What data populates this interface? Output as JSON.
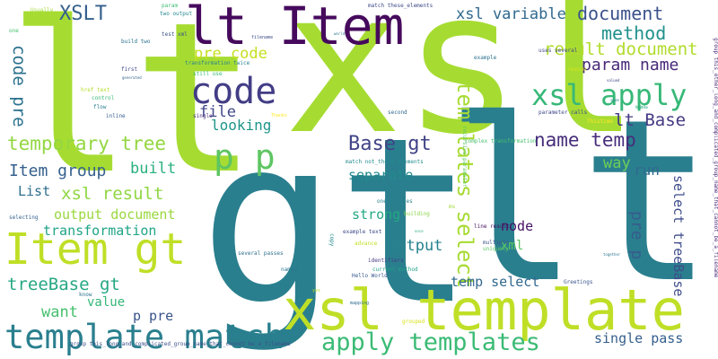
{
  "words": [
    {
      "text": "lt",
      "color": "#a6dc32"
    },
    {
      "text": "xsl",
      "color": "#a6dc32"
    },
    {
      "text": "gt",
      "color": "#2a7f8e"
    },
    {
      "text": "lt",
      "color": "#2a7f8e"
    },
    {
      "text": "lt Item",
      "color": "#460a5d"
    },
    {
      "text": "code",
      "color": "#423d85"
    },
    {
      "text": "Item gt",
      "color": "#bfdf27"
    },
    {
      "text": "xsl template",
      "color": "#bfdf27"
    },
    {
      "text": "template match",
      "color": "#2a7f8e"
    },
    {
      "text": "xsl apply",
      "color": "#37b878"
    },
    {
      "text": "p p",
      "color": "#5ec562"
    },
    {
      "text": "apply templates",
      "color": "#3bbb75"
    },
    {
      "text": "XSLT",
      "color": "#35608d"
    },
    {
      "text": "xsl variable",
      "color": "#30698e"
    },
    {
      "text": "document",
      "color": "#3b528b"
    },
    {
      "text": "method",
      "color": "#21918c"
    },
    {
      "text": "result document",
      "color": "#b1dc2b"
    },
    {
      "text": "param name",
      "color": "#482878"
    },
    {
      "text": "pre code",
      "color": "#c7e020"
    },
    {
      "text": "code pre",
      "color": "#2c728e"
    },
    {
      "text": "file",
      "color": "#3f4788"
    },
    {
      "text": "looking",
      "color": "#1f968b"
    },
    {
      "text": "temporary tree",
      "color": "#93d741"
    },
    {
      "text": "Base gt",
      "color": "#414487"
    },
    {
      "text": "name temp",
      "color": "#472d7b"
    },
    {
      "text": "lt Base",
      "color": "#443983"
    },
    {
      "text": "templates select",
      "color": "#a8db34"
    },
    {
      "text": "Item group",
      "color": "#35608d"
    },
    {
      "text": "built",
      "color": "#2ab07f"
    },
    {
      "text": "xsl result",
      "color": "#90d743"
    },
    {
      "text": "separate",
      "color": "#238a8d"
    },
    {
      "text": "way",
      "color": "#6ece58"
    },
    {
      "text": "run",
      "color": "#306a8e"
    },
    {
      "text": "List",
      "color": "#2e6f8e"
    },
    {
      "text": "output document",
      "color": "#99d83d"
    },
    {
      "text": "strong",
      "color": "#23a983"
    },
    {
      "text": "node",
      "color": "#471164"
    },
    {
      "text": "xml",
      "color": "#58c765"
    },
    {
      "text": "pre p",
      "color": "#365c8d"
    },
    {
      "text": "select treeBase",
      "color": "#3e4c8a"
    },
    {
      "text": "transformation",
      "color": "#20a486"
    },
    {
      "text": "output",
      "color": "#26828e"
    },
    {
      "text": "treeBase gt",
      "color": "#26a784"
    },
    {
      "text": "want",
      "color": "#46c06f"
    },
    {
      "text": "value",
      "color": "#34b679"
    },
    {
      "text": "p pre",
      "color": "#3a548c"
    },
    {
      "text": "temp select",
      "color": "#31688e"
    },
    {
      "text": "single pass",
      "color": "#355f8d"
    },
    {
      "text": "Usually",
      "color": "#a0da39"
    },
    {
      "text": "param",
      "color": "#3dbc74"
    },
    {
      "text": "two output",
      "color": "#238a8d"
    },
    {
      "text": "match these_elements",
      "color": "#3e4989"
    },
    {
      "text": "one",
      "color": "#46c06f"
    },
    {
      "text": "build two",
      "color": "#2c728e"
    },
    {
      "text": "test xml",
      "color": "#3b528b"
    },
    {
      "text": "first",
      "color": "#3e4989"
    },
    {
      "text": "generated",
      "color": "#33638d"
    },
    {
      "text": "href text",
      "color": "#b5de2b"
    },
    {
      "text": "control",
      "color": "#3aba76"
    },
    {
      "text": "flow",
      "color": "#277f8e"
    },
    {
      "text": "inline",
      "color": "#355f8d"
    },
    {
      "text": "still use",
      "color": "#3aba76"
    },
    {
      "text": "transformation twice",
      "color": "#26828e"
    },
    {
      "text": "single",
      "color": "#472c7a"
    },
    {
      "text": "filename",
      "color": "#3d4d8a"
    },
    {
      "text": "Thanks",
      "color": "#fde725"
    },
    {
      "text": "second",
      "color": "#31688e"
    },
    {
      "text": "complex transformation",
      "color": "#46c06f"
    },
    {
      "text": "match not_these_elements",
      "color": "#238a8d"
    },
    {
      "text": "one creates",
      "color": "#26828e"
    },
    {
      "text": "building",
      "color": "#89d548"
    },
    {
      "text": "several passes",
      "color": "#2e6e8e"
    },
    {
      "text": "named",
      "color": "#2a768e"
    },
    {
      "text": "Hello World",
      "color": "#37598c"
    },
    {
      "text": "current method",
      "color": "#1fa287"
    },
    {
      "text": "identifiers",
      "color": "#443a83"
    },
    {
      "text": "example text",
      "color": "#3e4a89"
    },
    {
      "text": "advance",
      "color": "#c2df23"
    },
    {
      "text": "line result",
      "color": "#471063"
    },
    {
      "text": "multiple",
      "color": "#3a548c"
    },
    {
      "text": "uniquely",
      "color": "#5cc863"
    },
    {
      "text": "uses several",
      "color": "#3f4788"
    },
    {
      "text": "example",
      "color": "#2c728e"
    },
    {
      "text": "reason",
      "color": "#d2e21b"
    },
    {
      "text": "valued",
      "color": "#3f4788"
    },
    {
      "text": "seem",
      "color": "#277f8e"
    },
    {
      "text": "Nodes",
      "color": "#35b779"
    },
    {
      "text": "parameter calls",
      "color": "#3f4788"
    },
    {
      "text": "Thistime",
      "color": "#fde725"
    },
    {
      "text": "Greetings",
      "color": "#39568c"
    },
    {
      "text": "copy",
      "color": "#238a8d"
    },
    {
      "text": "know",
      "color": "#2c728e"
    },
    {
      "text": "selecting",
      "color": "#34618d"
    },
    {
      "text": "grouped",
      "color": "#d8e219"
    },
    {
      "text": "group this_long_and_complicated_group_name_that_cannot_be_a_filename",
      "color": "#3c4f8a"
    },
    {
      "text": "group this_other_long_and_complicated_group_name_that_cannot_be_a_filename",
      "color": "#472878"
    },
    {
      "text": "recursive parameter",
      "color": "#5cc863"
    },
    {
      "text": "ms",
      "color": "#9fda3a"
    },
    {
      "text": "mapping",
      "color": "#2e6e8e"
    },
    {
      "text": "together",
      "color": "#2a768e"
    },
    {
      "text": "world",
      "color": "#2a788e"
    },
    {
      "text": "yes",
      "color": "#b5de2b"
    },
    {
      "text": "once",
      "color": "#2ab07f"
    },
    {
      "text": "title",
      "color": "#1fa088"
    }
  ]
}
